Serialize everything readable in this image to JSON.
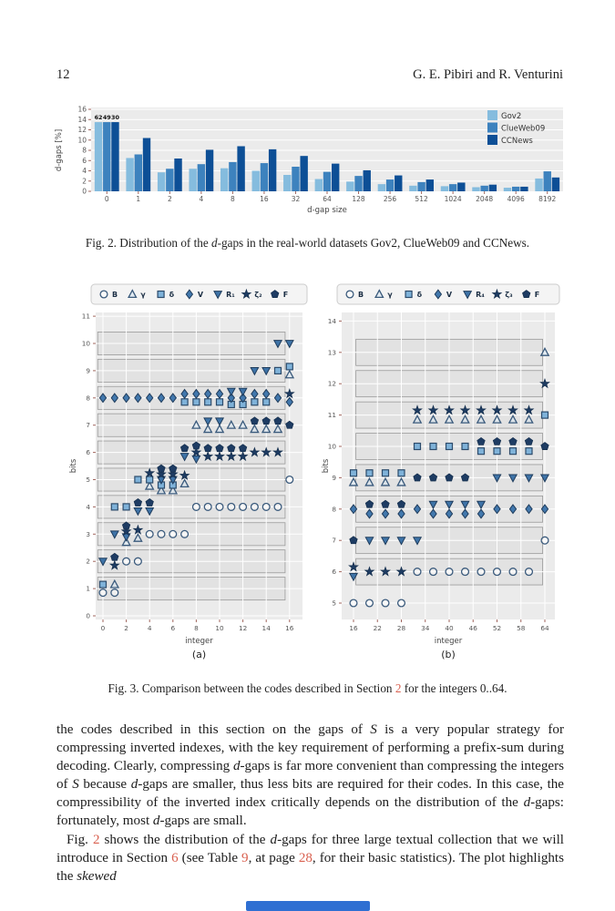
{
  "page": {
    "number": "12",
    "running_head": "G. E. Pibiri and R. Venturini"
  },
  "colors": {
    "link": "#d9604f",
    "bar_series": [
      "#85bcde",
      "#3d82be",
      "#0d4f96"
    ],
    "panel": "#ebebeb",
    "grid": "#ffffff",
    "band_fill": "#e2e2e2",
    "band_stroke": "#9a9a9a",
    "tick": "#a1665e",
    "tick_label": "#555555",
    "marker_open_stroke": "#3a5a7c",
    "marker_square_fill": "#7fb2d9",
    "marker_diamond_fill": "#4278ad",
    "marker_tridown_fill": "#3f74a8",
    "marker_dark_fill": "#1e3c63",
    "bottom_bar": "#2f6fd2"
  },
  "fig2_caption": [
    {
      "t": "Fig. 2.  Distribution of the "
    },
    {
      "t": "d",
      "s": "i"
    },
    {
      "t": "-gaps in the real-world datasets Gov2, ClueWeb09 and CCNews."
    }
  ],
  "fig3_caption": [
    {
      "t": "Fig. 3.  Comparison between the codes described in Section "
    },
    {
      "t": "2",
      "s": "link"
    },
    {
      "t": " for the integers 0..64."
    }
  ],
  "paragraphs": [
    [
      {
        "t": "the codes described in this section on the gaps of "
      },
      {
        "t": "S",
        "s": "i"
      },
      {
        "t": " is a very popular strategy for compressing inverted indexes, with the key requirement of performing a prefix-sum during decoding. Clearly, compressing "
      },
      {
        "t": "d",
        "s": "i"
      },
      {
        "t": "-gaps is far more convenient than compressing the integers of "
      },
      {
        "t": "S",
        "s": "i"
      },
      {
        "t": " because "
      },
      {
        "t": "d",
        "s": "i"
      },
      {
        "t": "-gaps are smaller, thus less bits are required for their codes. In this case, the compressibility of the inverted index critically depends on the distribution of the "
      },
      {
        "t": "d",
        "s": "i"
      },
      {
        "t": "-gaps: fortunately, most "
      },
      {
        "t": "d",
        "s": "i"
      },
      {
        "t": "-gaps are small."
      }
    ],
    [
      {
        "t": "Fig. "
      },
      {
        "t": "2",
        "s": "link"
      },
      {
        "t": " shows the distribution of the "
      },
      {
        "t": "d",
        "s": "i"
      },
      {
        "t": "-gaps for three large textual collection that we will introduce in Section "
      },
      {
        "t": "6",
        "s": "link"
      },
      {
        "t": " (see Table "
      },
      {
        "t": "9",
        "s": "link"
      },
      {
        "t": ", at page "
      },
      {
        "t": "28",
        "s": "link"
      },
      {
        "t": ", for their basic statistics). The plot highlights the "
      },
      {
        "t": "skewed",
        "s": "i"
      }
    ]
  ],
  "chart_data": [
    {
      "type": "bar",
      "title": "",
      "xlabel": "d-gap size",
      "ylabel": "d-gaps [%]",
      "categories": [
        "0",
        "1",
        "2",
        "4",
        "8",
        "16",
        "32",
        "64",
        "128",
        "256",
        "512",
        "1024",
        "2048",
        "4096",
        "8192"
      ],
      "series": [
        {
          "name": "Gov2",
          "values": [
            62,
            6.5,
            3.7,
            4.4,
            4.5,
            4.0,
            3.2,
            2.4,
            1.9,
            1.4,
            1.1,
            1.0,
            0.8,
            0.7,
            2.5
          ]
        },
        {
          "name": "ClueWeb09",
          "values": [
            49,
            7.2,
            4.4,
            5.3,
            5.7,
            5.5,
            4.8,
            3.8,
            3.0,
            2.3,
            1.8,
            1.4,
            1.1,
            0.9,
            3.9
          ]
        },
        {
          "name": "CCNews",
          "values": [
            30,
            10.4,
            6.4,
            8.1,
            8.8,
            8.2,
            6.9,
            5.4,
            4.1,
            3.1,
            2.3,
            1.7,
            1.3,
            0.9,
            2.7
          ]
        }
      ],
      "ylim": [
        0,
        16
      ],
      "yticks": [
        0,
        2,
        4,
        6,
        8,
        10,
        12,
        14,
        16
      ],
      "clip_at": 13.5,
      "clip_labels": [
        "62",
        "49",
        "30"
      ],
      "legend_position": "top-right",
      "grid": true
    },
    {
      "type": "scatter",
      "sublabel": "(a)",
      "xlabel": "integer",
      "ylabel": "bits",
      "xticks": [
        0,
        2,
        4,
        6,
        8,
        10,
        12,
        14,
        16
      ],
      "yticks": [
        0,
        1,
        2,
        3,
        4,
        5,
        6,
        7,
        8,
        9,
        10,
        11
      ],
      "band_levels": [
        1,
        2,
        3,
        4,
        5,
        6,
        7,
        8,
        9,
        10
      ],
      "band_x": [
        -0.45,
        15.62
      ],
      "legend": [
        "B",
        "γ",
        "δ",
        "V",
        "R₁",
        "ζ₂",
        "F"
      ],
      "series": [
        {
          "name": "B",
          "marker": "circle",
          "x": [
            0,
            1,
            2,
            3,
            4,
            5,
            6,
            7,
            8,
            9,
            10,
            11,
            12,
            13,
            14,
            15,
            16
          ],
          "y": [
            1,
            1,
            2,
            2,
            3,
            3,
            3,
            3,
            4,
            4,
            4,
            4,
            4,
            4,
            4,
            4,
            5
          ]
        },
        {
          "name": "γ",
          "marker": "triangle",
          "x": [
            1,
            2,
            3,
            4,
            5,
            6,
            7,
            8,
            9,
            10,
            11,
            12,
            13,
            14,
            15,
            16
          ],
          "y": [
            1,
            3,
            3,
            5,
            5,
            5,
            5,
            7,
            7,
            7,
            7,
            7,
            7,
            7,
            7,
            9
          ]
        },
        {
          "name": "δ",
          "marker": "square",
          "x": [
            0,
            1,
            2,
            3,
            4,
            5,
            6,
            7,
            8,
            9,
            10,
            11,
            12,
            13,
            14,
            15,
            16
          ],
          "y": [
            1,
            4,
            4,
            5,
            5,
            5,
            5,
            8,
            8,
            8,
            8,
            8,
            8,
            8,
            8,
            9,
            9
          ]
        },
        {
          "name": "V",
          "marker": "diamond",
          "x": [
            0,
            1,
            2,
            3,
            4,
            5,
            6,
            7,
            8,
            9,
            10,
            11,
            12,
            13,
            14,
            15,
            16
          ],
          "y": [
            8,
            8,
            8,
            8,
            8,
            8,
            8,
            8,
            8,
            8,
            8,
            8,
            8,
            8,
            8,
            8,
            8
          ]
        },
        {
          "name": "R₁",
          "marker": "tridown",
          "x": [
            0,
            1,
            2,
            3,
            4,
            5,
            6,
            7,
            8,
            9,
            10,
            11,
            12,
            13,
            14,
            15,
            16
          ],
          "y": [
            2,
            3,
            3,
            4,
            4,
            5,
            5,
            6,
            6,
            7,
            7,
            8,
            8,
            9,
            9,
            10,
            10
          ]
        },
        {
          "name": "ζ₂",
          "marker": "star",
          "x": [
            1,
            2,
            3,
            4,
            5,
            6,
            7,
            8,
            9,
            10,
            11,
            12,
            13,
            14,
            15,
            16
          ],
          "y": [
            2,
            3,
            3,
            5,
            5,
            5,
            5,
            6,
            6,
            6,
            6,
            6,
            6,
            6,
            6,
            8
          ]
        },
        {
          "name": "F",
          "marker": "pentagon",
          "x": [
            1,
            2,
            3,
            4,
            5,
            6,
            7,
            8,
            9,
            10,
            11,
            12,
            13,
            14,
            15,
            16
          ],
          "y": [
            2,
            3,
            4,
            4,
            5,
            5,
            6,
            6,
            6,
            6,
            6,
            6,
            7,
            7,
            7,
            7
          ]
        }
      ]
    },
    {
      "type": "scatter",
      "sublabel": "(b)",
      "xlabel": "integer",
      "ylabel": "bits",
      "xticks": [
        16,
        22,
        28,
        34,
        40,
        46,
        52,
        58,
        64
      ],
      "yticks": [
        5,
        6,
        7,
        8,
        9,
        10,
        11,
        12,
        13,
        14
      ],
      "band_levels": [
        6,
        7,
        8,
        9,
        10,
        11,
        12,
        13
      ],
      "band_x": [
        16.6,
        63.45
      ],
      "legend": [
        "B",
        "γ",
        "δ",
        "V",
        "R₄",
        "ζ₃",
        "F"
      ],
      "series": [
        {
          "name": "B",
          "marker": "circle",
          "x": [
            16,
            20,
            24,
            28,
            32,
            36,
            40,
            44,
            48,
            52,
            56,
            60,
            64
          ],
          "y": [
            5,
            5,
            5,
            5,
            6,
            6,
            6,
            6,
            6,
            6,
            6,
            6,
            7
          ]
        },
        {
          "name": "γ",
          "marker": "triangle",
          "x": [
            16,
            20,
            24,
            28,
            32,
            36,
            40,
            44,
            48,
            52,
            56,
            60,
            64
          ],
          "y": [
            9,
            9,
            9,
            9,
            11,
            11,
            11,
            11,
            11,
            11,
            11,
            11,
            13
          ]
        },
        {
          "name": "δ",
          "marker": "square",
          "x": [
            16,
            20,
            24,
            28,
            32,
            36,
            40,
            44,
            48,
            52,
            56,
            60,
            64
          ],
          "y": [
            9,
            9,
            9,
            9,
            10,
            10,
            10,
            10,
            10,
            10,
            10,
            10,
            11
          ]
        },
        {
          "name": "V",
          "marker": "diamond",
          "x": [
            16,
            20,
            24,
            28,
            32,
            36,
            40,
            44,
            48,
            52,
            56,
            60,
            64
          ],
          "y": [
            8,
            8,
            8,
            8,
            8,
            8,
            8,
            8,
            8,
            8,
            8,
            8,
            8
          ]
        },
        {
          "name": "R₄",
          "marker": "tridown",
          "x": [
            16,
            20,
            24,
            28,
            32,
            36,
            40,
            44,
            48,
            52,
            56,
            60,
            64
          ],
          "y": [
            6,
            7,
            7,
            7,
            7,
            8,
            8,
            8,
            8,
            9,
            9,
            9,
            9
          ]
        },
        {
          "name": "ζ₃",
          "marker": "star",
          "x": [
            16,
            20,
            24,
            28,
            32,
            36,
            40,
            44,
            48,
            52,
            56,
            60,
            64
          ],
          "y": [
            6,
            6,
            6,
            6,
            11,
            11,
            11,
            11,
            11,
            11,
            11,
            11,
            12
          ]
        },
        {
          "name": "F",
          "marker": "pentagon",
          "x": [
            16,
            20,
            24,
            28,
            32,
            36,
            40,
            44,
            48,
            52,
            56,
            60,
            64
          ],
          "y": [
            7,
            8,
            8,
            8,
            9,
            9,
            9,
            9,
            10,
            10,
            10,
            10,
            10
          ]
        }
      ]
    }
  ]
}
